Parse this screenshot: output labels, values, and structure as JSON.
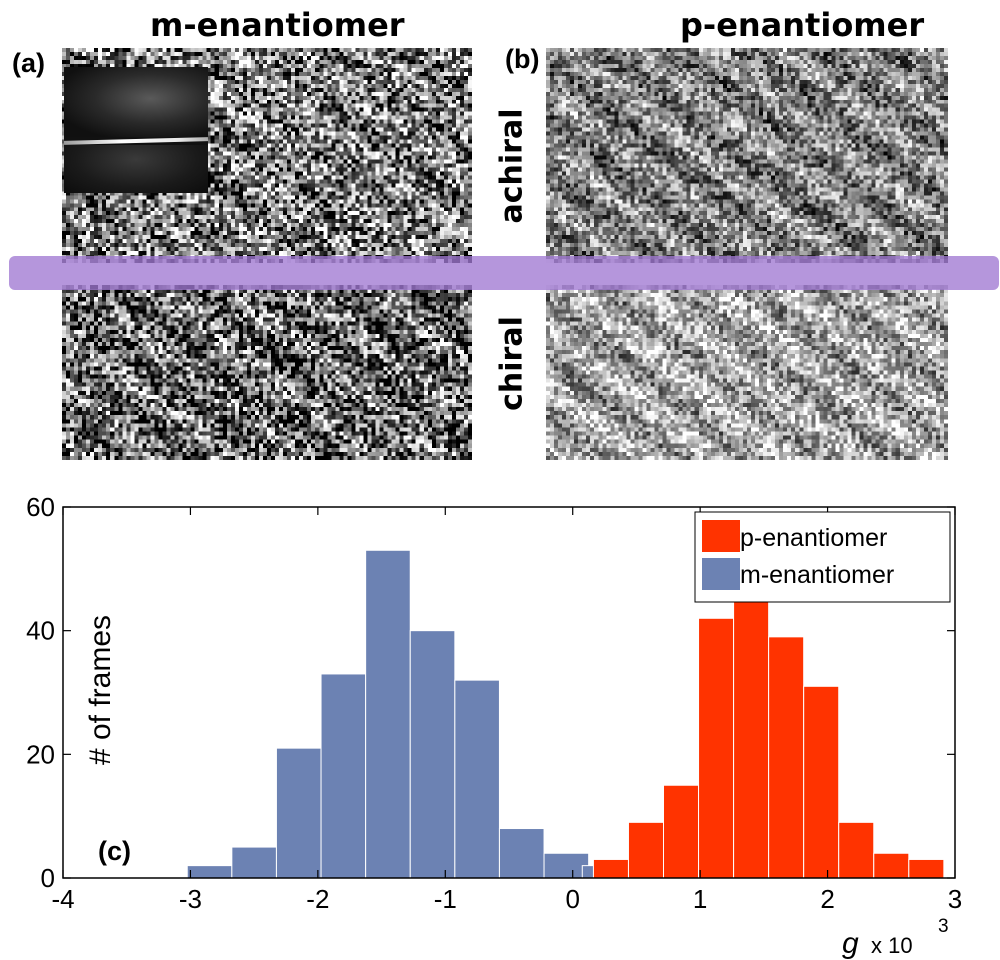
{
  "panels": {
    "a_title": "m-enantiomer",
    "b_title": "p-enantiomer",
    "a_tag": "(a)",
    "b_tag": "(b)",
    "c_tag": "(c)",
    "row_top_label": "achiral",
    "row_bottom_label": "chiral"
  },
  "colors": {
    "p_series": "#ff3300",
    "m_series": "#6c82b3",
    "band": "#a078d2"
  },
  "chart_data": {
    "type": "bar",
    "xlabel_main": "g",
    "xlabel_rest": "x 10",
    "xlabel_exp": "3",
    "ylabel": "# of frames",
    "xlim": [
      -4,
      3
    ],
    "ylim": [
      0,
      60
    ],
    "xticks": [
      "-4",
      "-3",
      "-2",
      "-1",
      "0",
      "1",
      "2",
      "3"
    ],
    "yticks": [
      "0",
      "20",
      "40",
      "60"
    ],
    "legend_position": "top-right",
    "series": [
      {
        "name": "p-enantiomer",
        "color": "#ff3300",
        "bin_width": 0.275,
        "bins": [
          {
            "x": 0.3,
            "count": 3
          },
          {
            "x": 0.575,
            "count": 9
          },
          {
            "x": 0.85,
            "count": 15
          },
          {
            "x": 1.125,
            "count": 42
          },
          {
            "x": 1.4,
            "count": 45
          },
          {
            "x": 1.675,
            "count": 39
          },
          {
            "x": 1.95,
            "count": 31
          },
          {
            "x": 2.225,
            "count": 9
          },
          {
            "x": 2.5,
            "count": 4
          },
          {
            "x": 2.775,
            "count": 3
          }
        ]
      },
      {
        "name": "m-enantiomer",
        "color": "#6c82b3",
        "bin_width": 0.35,
        "bins": [
          {
            "x": -2.85,
            "count": 2
          },
          {
            "x": -2.5,
            "count": 5
          },
          {
            "x": -2.15,
            "count": 21
          },
          {
            "x": -1.8,
            "count": 33
          },
          {
            "x": -1.45,
            "count": 53
          },
          {
            "x": -1.1,
            "count": 40
          },
          {
            "x": -0.75,
            "count": 32
          },
          {
            "x": -0.4,
            "count": 8
          },
          {
            "x": -0.05,
            "count": 4
          },
          {
            "x": 0.25,
            "count": 2
          }
        ]
      }
    ]
  }
}
